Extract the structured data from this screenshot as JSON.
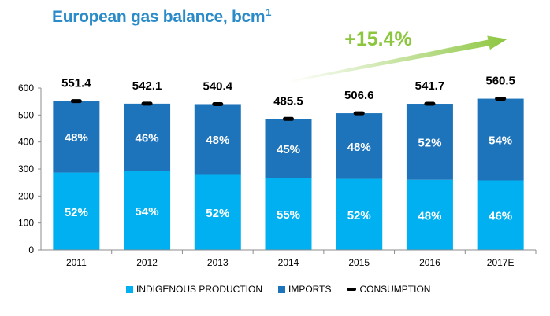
{
  "title": "European gas balance, bcm",
  "title_superscript": "1",
  "growth_annotation": "+15.4%",
  "colors": {
    "indigenous": "#00b0f0",
    "imports": "#1e74bb",
    "consumption": "#000000",
    "arrow": "#8cc63f",
    "title": "#2a8bc8"
  },
  "chart_data": {
    "type": "bar",
    "stacked": true,
    "categories": [
      "2011",
      "2012",
      "2013",
      "2014",
      "2015",
      "2016",
      "2017E"
    ],
    "series": [
      {
        "name": "INDIGENOUS PRODUCTION",
        "values": [
          286.7,
          292.7,
          281.0,
          267.0,
          263.4,
          260.0,
          257.8
        ],
        "labels": [
          "52%",
          "54%",
          "52%",
          "55%",
          "52%",
          "48%",
          "46%"
        ]
      },
      {
        "name": "IMPORTS",
        "values": [
          264.7,
          249.4,
          259.4,
          218.5,
          243.2,
          281.7,
          302.7
        ],
        "labels": [
          "48%",
          "46%",
          "48%",
          "45%",
          "48%",
          "52%",
          "54%"
        ]
      }
    ],
    "consumption": {
      "name": "CONSUMPTION",
      "values": [
        551.4,
        542.1,
        540.4,
        485.5,
        506.6,
        541.7,
        560.5
      ],
      "labels": [
        "551.4",
        "542.1",
        "540.4",
        "485.5",
        "506.6",
        "541.7",
        "560.5"
      ]
    },
    "yticks": [
      "0",
      "100",
      "200",
      "300",
      "400",
      "500",
      "600"
    ],
    "ylim": [
      0,
      600
    ],
    "grid": false,
    "legend_position": "bottom"
  }
}
